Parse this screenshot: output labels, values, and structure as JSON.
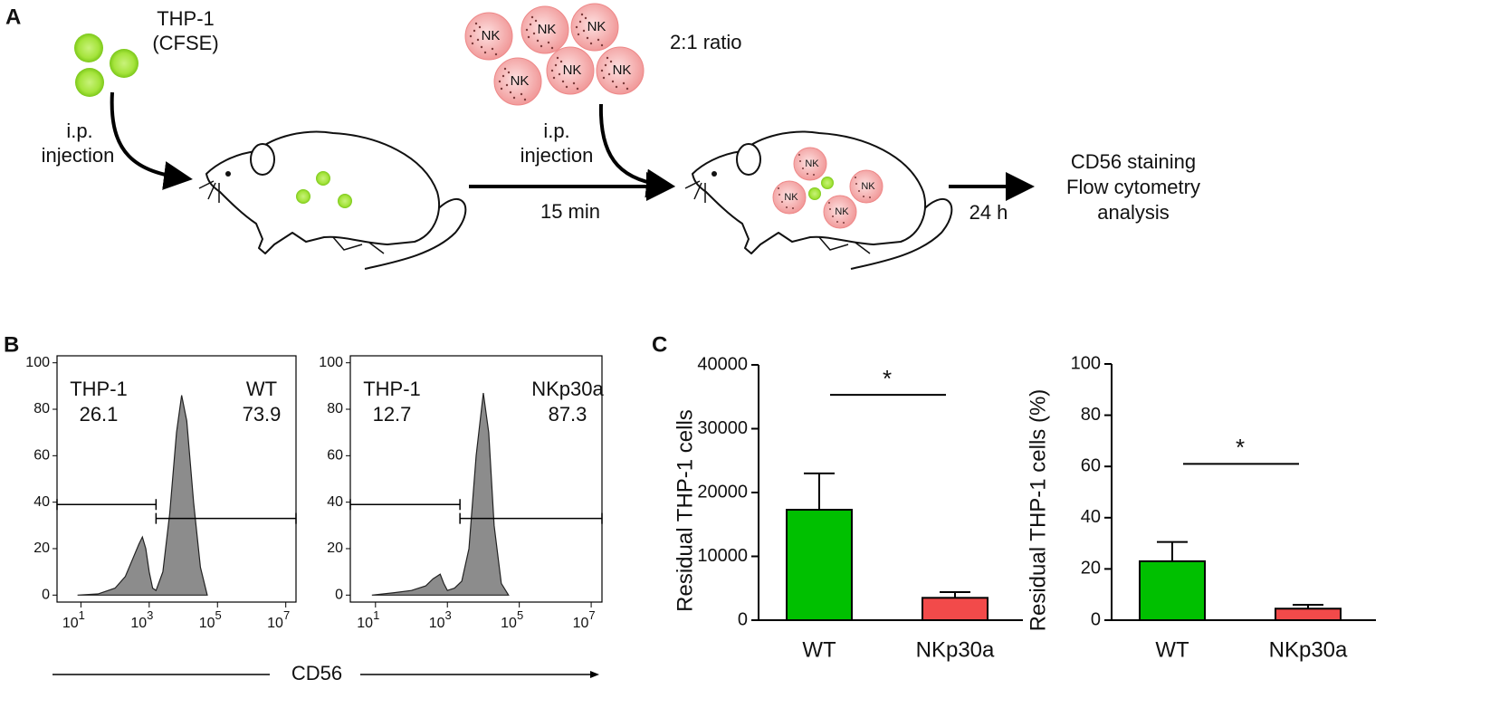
{
  "panels": {
    "a": {
      "label": "A",
      "cell_name": [
        "THP-1",
        "(CFSE)"
      ],
      "inject_1": [
        "i.p.",
        "injection"
      ],
      "nk_text": "NK",
      "ratio": "2:1 ratio",
      "inject_2": [
        "i.p.",
        "injection"
      ],
      "time_1": "15 min",
      "time_2": "24 h",
      "readout": [
        "CD56 staining",
        "Flow cytometry",
        "analysis"
      ]
    },
    "b": {
      "label": "B",
      "xlabel": "CD56"
    },
    "c": {
      "label": "C"
    }
  },
  "chart_data": [
    {
      "type": "area",
      "x": [
        0.9,
        1.5,
        2.0,
        2.3,
        2.5,
        2.7,
        2.8,
        2.9,
        3.0,
        3.1,
        3.2,
        3.4,
        3.6,
        3.8,
        3.95,
        4.1,
        4.3,
        4.5,
        4.7
      ],
      "values": [
        0,
        0.5,
        3,
        8,
        15,
        22,
        25,
        20,
        10,
        3,
        2,
        10,
        35,
        70,
        86,
        75,
        40,
        12,
        0
      ],
      "color": "#8c8c8c",
      "xlim": [
        0.3,
        7.3
      ],
      "xticks": [
        {
          "value": 1,
          "label": "10",
          "exponent": "1"
        },
        {
          "value": 3,
          "label": "10",
          "exponent": "3"
        },
        {
          "value": 5,
          "label": "10",
          "exponent": "5"
        },
        {
          "value": 7,
          "label": "10",
          "exponent": "7"
        }
      ],
      "ylim": [
        -3,
        103
      ],
      "yticks": [
        0,
        20,
        40,
        60,
        80,
        100
      ],
      "gates": [
        {
          "x": [
            0.3,
            3.2
          ],
          "y": 39
        },
        {
          "x": [
            3.2,
            7.3
          ],
          "y": 33
        }
      ],
      "gate_names": [
        "THP-1",
        "WT"
      ],
      "gate_values": [
        26.1,
        73.9
      ]
    },
    {
      "type": "area",
      "x": [
        0.9,
        1.5,
        2.0,
        2.4,
        2.6,
        2.8,
        2.9,
        3.0,
        3.2,
        3.4,
        3.6,
        3.8,
        4.0,
        4.15,
        4.3,
        4.5,
        4.7
      ],
      "values": [
        0,
        1,
        2,
        4,
        7,
        9,
        5,
        2,
        3,
        6,
        20,
        60,
        87,
        70,
        30,
        5,
        0
      ],
      "color": "#8c8c8c",
      "xlim": [
        0.3,
        7.3
      ],
      "xticks": [
        {
          "value": 1,
          "label": "10",
          "exponent": "1"
        },
        {
          "value": 3,
          "label": "10",
          "exponent": "3"
        },
        {
          "value": 5,
          "label": "10",
          "exponent": "5"
        },
        {
          "value": 7,
          "label": "10",
          "exponent": "7"
        }
      ],
      "ylim": [
        -3,
        103
      ],
      "yticks": [
        0,
        20,
        40,
        60,
        80,
        100
      ],
      "gates": [
        {
          "x": [
            0.3,
            3.35
          ],
          "y": 39
        },
        {
          "x": [
            3.35,
            7.3
          ],
          "y": 33
        }
      ],
      "gate_names": [
        "THP-1",
        "NKp30a"
      ],
      "gate_values": [
        12.7,
        87.3
      ]
    },
    {
      "type": "bar",
      "ylabel": "Residual THP-1 cells",
      "categories": [
        "WT",
        "NKp30a"
      ],
      "values": [
        17300,
        3500
      ],
      "errors": [
        5700,
        900
      ],
      "colors": [
        "#00c000",
        "#f24a4a"
      ],
      "ylim": [
        0,
        40000
      ],
      "yticks": [
        0,
        10000,
        20000,
        30000,
        40000
      ],
      "significance": {
        "label": "*",
        "y": 35300
      }
    },
    {
      "type": "bar",
      "ylabel": "Residual THP-1 cells (%)",
      "categories": [
        "WT",
        "NKp30a"
      ],
      "values": [
        23,
        4.5
      ],
      "errors": [
        7.5,
        1.5
      ],
      "colors": [
        "#00c000",
        "#f24a4a"
      ],
      "ylim": [
        0,
        100
      ],
      "yticks": [
        0,
        20,
        40,
        60,
        80,
        100
      ],
      "significance": {
        "label": "*",
        "y": 61
      }
    }
  ]
}
